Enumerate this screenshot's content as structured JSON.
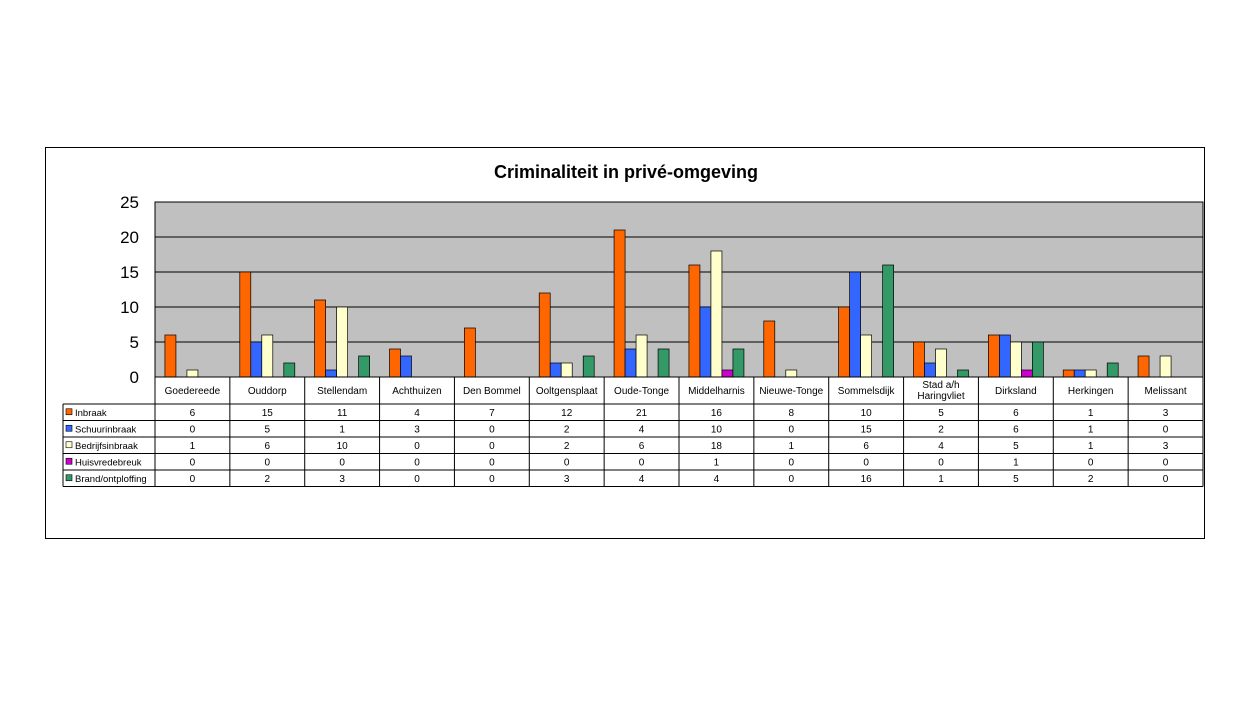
{
  "chart_data": {
    "type": "bar",
    "title": "Criminaliteit in privé-omgeving",
    "ylim": [
      0,
      25
    ],
    "yticks": [
      0,
      5,
      10,
      15,
      20,
      25
    ],
    "grid": true,
    "legend": "data-table",
    "categories": [
      "Goedereede",
      "Ouddorp",
      "Stellendam",
      "Achthuizen",
      "Den Bommel",
      "Ooltgensplaat",
      "Oude-Tonge",
      "Middelharnis",
      "Nieuwe-Tonge",
      "Sommelsdijk",
      "Stad a/h Haringvliet",
      "Dirksland",
      "Herkingen",
      "Melissant"
    ],
    "series": [
      {
        "name": "Inbraak",
        "color": "#ff6600",
        "values": [
          6,
          15,
          11,
          4,
          7,
          12,
          21,
          16,
          8,
          10,
          5,
          6,
          1,
          3
        ]
      },
      {
        "name": "Schuurinbraak",
        "color": "#3366ff",
        "values": [
          0,
          5,
          1,
          3,
          0,
          2,
          4,
          10,
          0,
          15,
          2,
          6,
          1,
          0
        ]
      },
      {
        "name": "Bedrijfsinbraak",
        "color": "#ffffcc",
        "values": [
          1,
          6,
          10,
          0,
          0,
          2,
          6,
          18,
          1,
          6,
          4,
          5,
          1,
          3
        ]
      },
      {
        "name": "Huisvredebreuk",
        "color": "#cc00cc",
        "values": [
          0,
          0,
          0,
          0,
          0,
          0,
          0,
          1,
          0,
          0,
          0,
          1,
          0,
          0
        ]
      },
      {
        "name": "Brand/ontploffing",
        "color": "#339966",
        "values": [
          0,
          2,
          3,
          0,
          0,
          3,
          4,
          4,
          0,
          16,
          1,
          5,
          2,
          0
        ]
      }
    ],
    "plot_background": "#c0c0c0"
  }
}
